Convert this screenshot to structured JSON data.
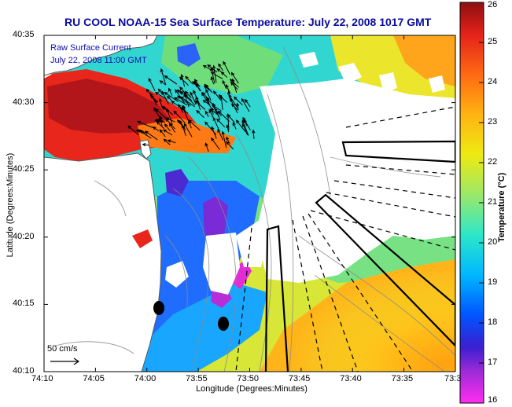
{
  "title": "RU COOL  NOAA-15  Sea Surface Temperature:  July 22, 2008 1017 GMT",
  "annotation": {
    "line1": "Raw Surface Current",
    "line2": "July 22, 2008 11:00 GMT"
  },
  "scale_label": "50 cm/s",
  "axes": {
    "xlabel": "Longitude (Degrees:Minutes)",
    "ylabel": "Latitude (Degrees:Minutes)",
    "xticks": [
      "74:10",
      "74:05",
      "74:00",
      "73:55",
      "73:50",
      "73:45",
      "73:40",
      "73:35",
      "73:3"
    ],
    "yticks": [
      "40:35",
      "40:30",
      "40:25",
      "40:20",
      "40:15",
      "40:10"
    ]
  },
  "colorbar": {
    "label": "Temperature (°C)",
    "ticks": [
      "26",
      "25",
      "24",
      "23",
      "22",
      "21",
      "20",
      "19",
      "18",
      "17",
      "16"
    ],
    "range": [
      16,
      26
    ]
  },
  "colors": {
    "title": "#0a0aa0",
    "annotation": "#1010b0",
    "land": "#ffffff",
    "vectors": "#000000"
  }
}
